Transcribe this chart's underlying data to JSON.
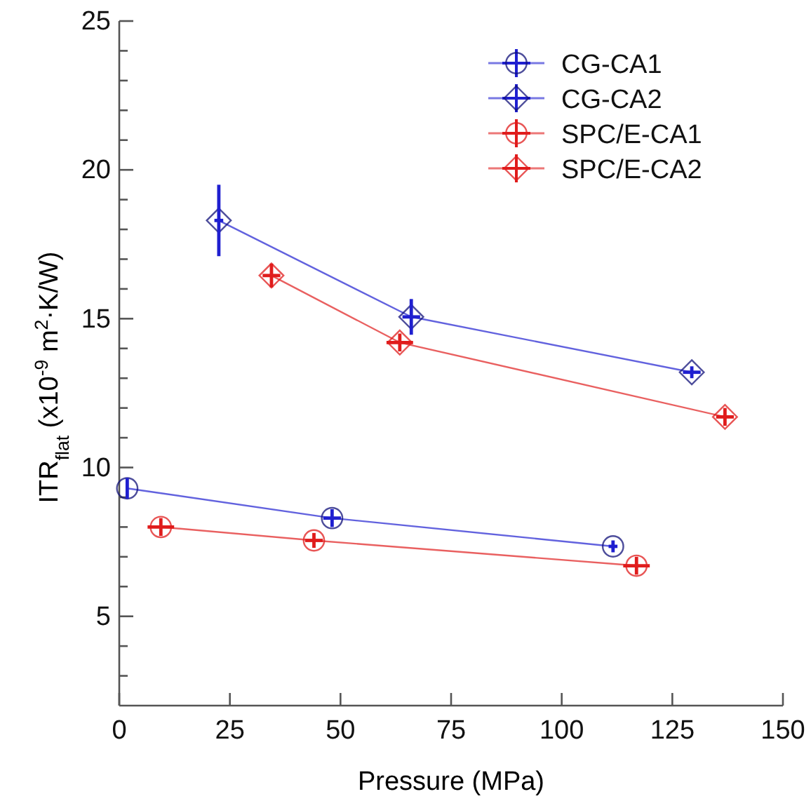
{
  "chart_data": {
    "type": "line",
    "xlabel": "Pressure (MPa)",
    "ylabel": "ITR$_{flat}$ (x10$^{-9}$ m$^{2}$·K/W)",
    "xlim": [
      0,
      150
    ],
    "xticks": [
      0,
      25,
      50,
      75,
      100,
      125,
      150
    ],
    "ylim": [
      2,
      25
    ],
    "yticks": [
      {
        "value": 3,
        "label": null
      },
      {
        "value": 4,
        "label": null
      },
      5,
      {
        "value": 6,
        "label": null
      },
      {
        "value": 7,
        "label": null
      },
      {
        "value": 8,
        "label": null
      },
      {
        "value": 9,
        "label": null
      },
      10,
      {
        "value": 11,
        "label": null
      },
      {
        "value": 12,
        "label": null
      },
      {
        "value": 13,
        "label": null
      },
      {
        "value": 14,
        "label": null
      },
      15,
      {
        "value": 16,
        "label": null
      },
      {
        "value": 17,
        "label": null
      },
      {
        "value": 18,
        "label": null
      },
      {
        "value": 19,
        "label": null
      },
      20,
      {
        "value": 21,
        "label": null
      },
      {
        "value": 22,
        "label": null
      },
      {
        "value": 23,
        "label": null
      },
      {
        "value": 24,
        "label": null
      },
      25
    ],
    "grid": false,
    "legend": "top right",
    "series": [
      {
        "name": "CG-CA1",
        "color": "#1f1fd0",
        "marker": "circle",
        "x": [
          1.8,
          48.1,
          111.6
        ],
        "values": [
          9.3,
          8.3,
          7.35
        ],
        "errors": [
          0.35,
          0.3,
          0.2
        ],
        "xerrors": [
          null,
          2,
          1
        ]
      },
      {
        "name": "CG-CA2",
        "color": "#1f1fd0",
        "marker": "diamond",
        "x": [
          22.5,
          66,
          129.4
        ],
        "values": [
          18.3,
          15.06,
          13.2
        ],
        "errors": [
          1.2,
          0.6,
          0.2
        ],
        "xerrors": [
          1,
          2,
          2
        ]
      },
      {
        "name": "SPC/E-CA1",
        "color": "#e01c1c",
        "marker": "circle",
        "x": [
          9.4,
          44,
          116.9
        ],
        "values": [
          8.0,
          7.55,
          6.7
        ],
        "errors": [
          0.3,
          0.25,
          0.3
        ],
        "xerrors": [
          3,
          2,
          3
        ]
      },
      {
        "name": "SPC/E-CA2",
        "color": "#e01c1c",
        "marker": "diamond",
        "x": [
          34.4,
          63.4,
          136.9
        ],
        "values": [
          16.45,
          14.2,
          11.7
        ],
        "errors": [
          0.4,
          0.3,
          0.3
        ],
        "xerrors": [
          2,
          3,
          2
        ]
      }
    ]
  }
}
